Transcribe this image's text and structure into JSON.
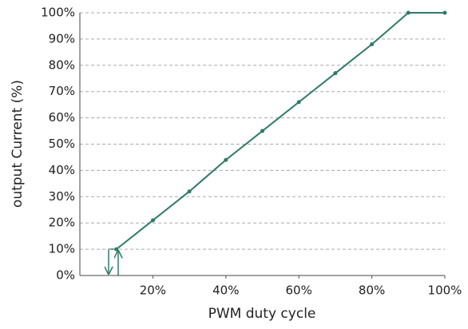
{
  "chart_data": {
    "type": "line",
    "x_label": "PWM duty cycle",
    "y_label": "output Current  (%)",
    "x": [
      10,
      20,
      30,
      40,
      50,
      60,
      70,
      80,
      90,
      100
    ],
    "series": [
      {
        "name": "output current",
        "color": "#2f7a68",
        "values": [
          10,
          21,
          32,
          44,
          55,
          66,
          77,
          88,
          100,
          100
        ]
      }
    ],
    "xlim": [
      0,
      100
    ],
    "xticks": [
      {
        "value": 20,
        "label": "20%"
      },
      {
        "value": 40,
        "label": "40%"
      },
      {
        "value": 60,
        "label": "60%"
      },
      {
        "value": 80,
        "label": "80%"
      },
      {
        "value": 100,
        "label": "100%"
      }
    ],
    "ylim": [
      0,
      100
    ],
    "yticks": [
      {
        "value": 0,
        "label": "0%"
      },
      {
        "value": 10,
        "label": "10%"
      },
      {
        "value": 20,
        "label": "20%"
      },
      {
        "value": 30,
        "label": "30%"
      },
      {
        "value": 40,
        "label": "40%"
      },
      {
        "value": 50,
        "label": "50%"
      },
      {
        "value": 60,
        "label": "60%"
      },
      {
        "value": 70,
        "label": "70%"
      },
      {
        "value": 80,
        "label": "80%"
      },
      {
        "value": 90,
        "label": "90%"
      },
      {
        "value": 100,
        "label": "100%"
      }
    ],
    "grid": true
  }
}
